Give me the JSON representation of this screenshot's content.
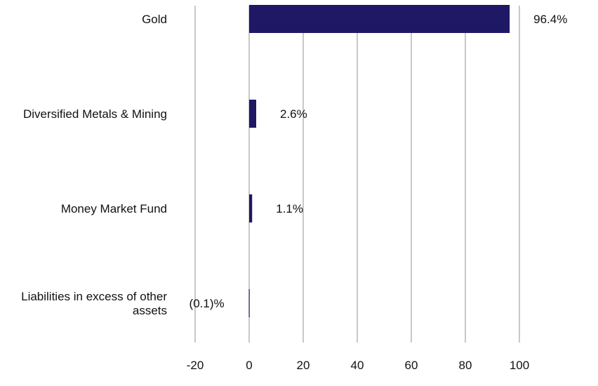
{
  "colors": {
    "bar": "#1f1864",
    "grid": "#c8c8c8",
    "text": "#111111"
  },
  "chart_data": {
    "type": "bar",
    "orientation": "horizontal",
    "title": "",
    "xlabel": "",
    "ylabel": "",
    "xlim": [
      -20,
      100
    ],
    "x_ticks": [
      -20,
      0,
      20,
      40,
      60,
      80,
      100
    ],
    "x_tick_labels": [
      "-20",
      "0",
      "20",
      "40",
      "60",
      "80",
      "100"
    ],
    "grid": true,
    "legend": "none",
    "categories": [
      [
        "Gold"
      ],
      [
        "Diversified Metals & Mining"
      ],
      [
        "Money Market Fund"
      ],
      [
        "Liabilities in excess of other",
        "assets"
      ]
    ],
    "values": [
      96.4,
      2.6,
      1.1,
      -0.1
    ],
    "value_labels": [
      "96.4%",
      "2.6%",
      "1.1%",
      "(0.1)%"
    ]
  }
}
